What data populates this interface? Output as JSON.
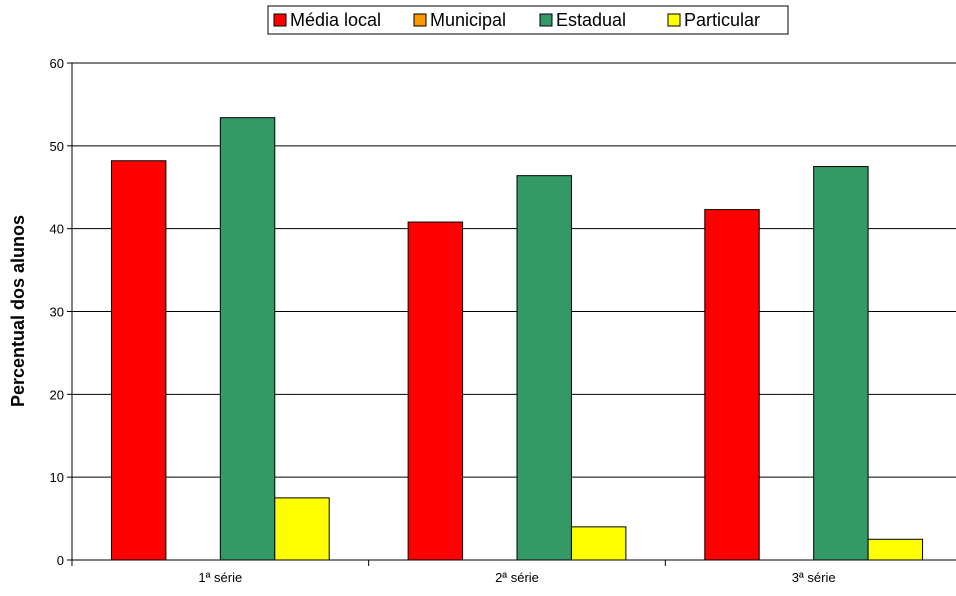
{
  "chart_data": {
    "type": "bar",
    "title": "",
    "xlabel": "",
    "ylabel": "Percentual dos alunos",
    "categories": [
      "1ª série",
      "2ª série",
      "3ª série"
    ],
    "series": [
      {
        "name": "Média local",
        "color": "#ff0000",
        "values": [
          48.2,
          40.8,
          42.3
        ]
      },
      {
        "name": "Municipal",
        "color": "#ff9900",
        "values": [
          0,
          0,
          0
        ]
      },
      {
        "name": "Estadual",
        "color": "#339966",
        "values": [
          53.4,
          46.4,
          47.5
        ]
      },
      {
        "name": "Particular",
        "color": "#ffff00",
        "values": [
          7.5,
          4.0,
          2.5
        ]
      }
    ],
    "ylim": [
      0,
      60
    ],
    "yticks": [
      0,
      10,
      20,
      30,
      40,
      50,
      60
    ],
    "grid": true,
    "legend_position": "top"
  }
}
